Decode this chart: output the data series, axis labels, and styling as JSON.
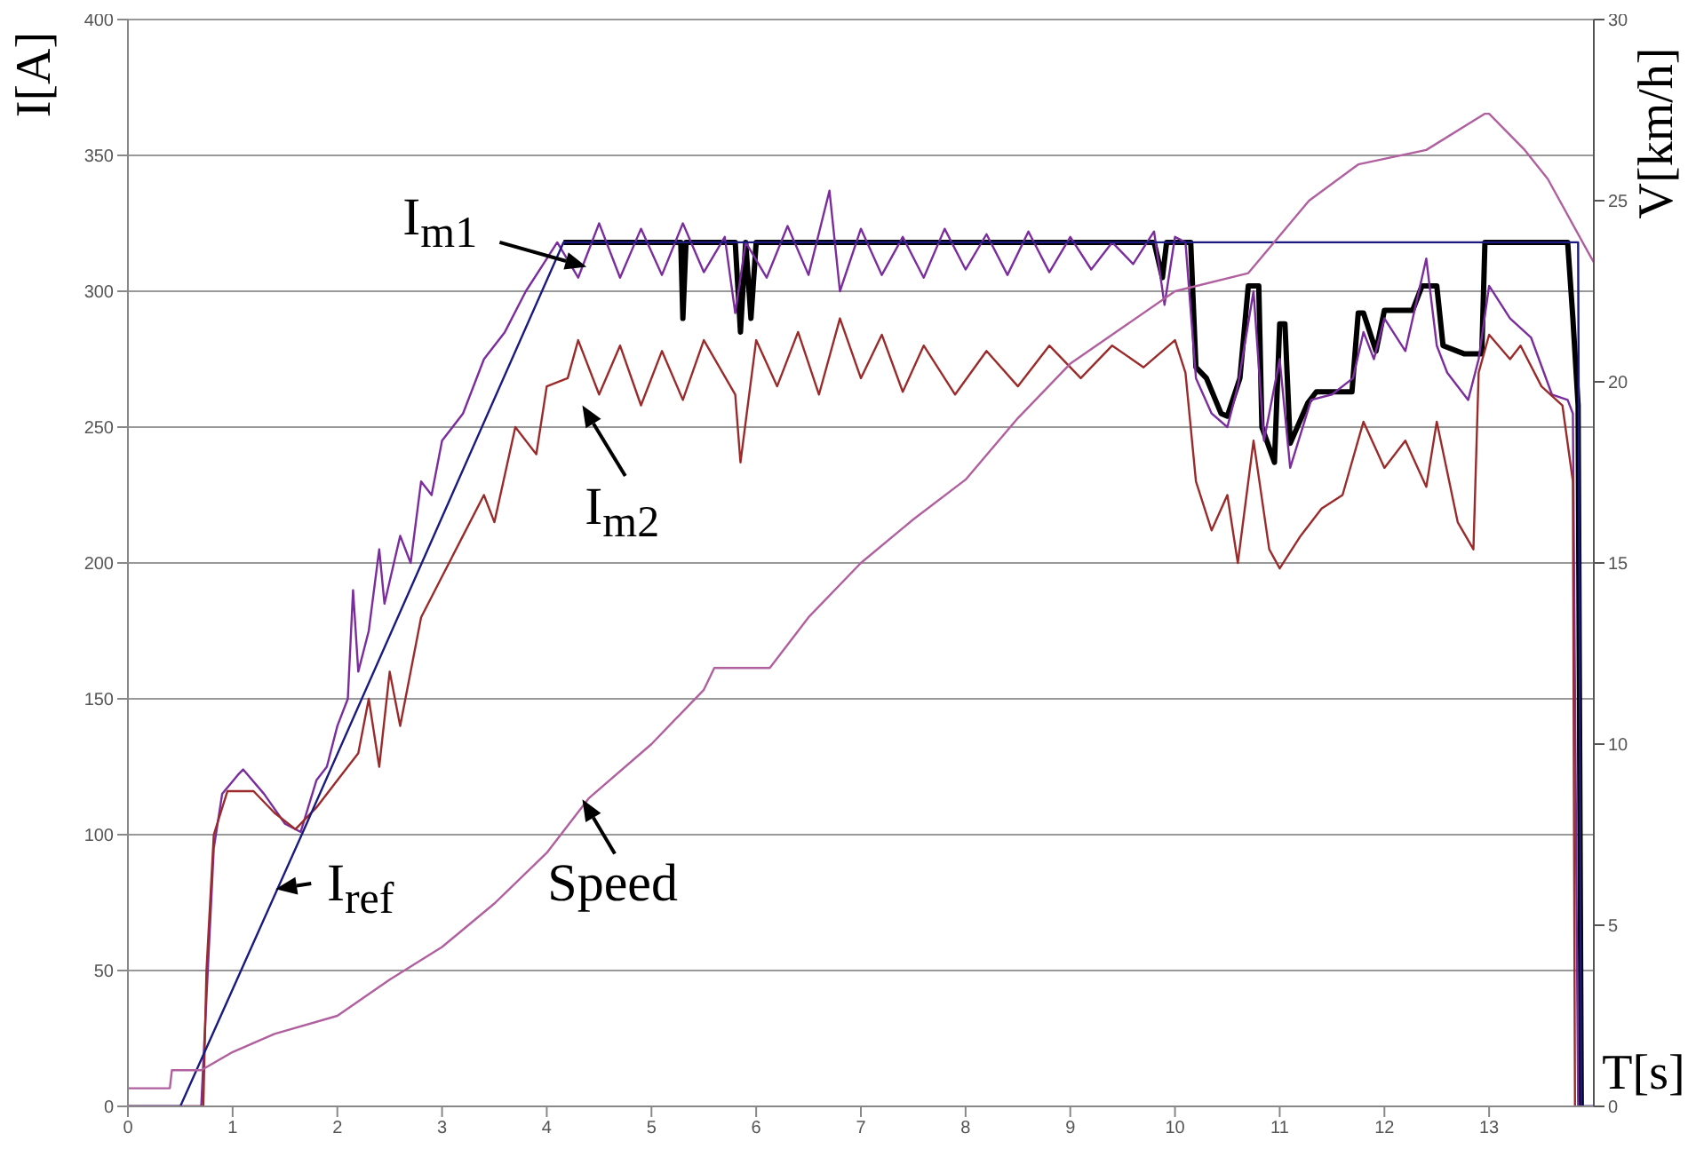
{
  "chart_data": {
    "type": "line",
    "xlabel": "T[s]",
    "ylabel": "I[A]",
    "y2label": "V[km/h]",
    "xlim": [
      0,
      14
    ],
    "xticks": [
      0,
      1,
      2,
      3,
      4,
      5,
      6,
      7,
      8,
      9,
      10,
      11,
      12,
      13
    ],
    "ylim": [
      0,
      400
    ],
    "yticks": [
      0,
      50,
      100,
      150,
      200,
      250,
      300,
      350,
      400
    ],
    "y2lim": [
      0,
      30
    ],
    "y2ticks": [
      0,
      5,
      10,
      15,
      20,
      25,
      30
    ],
    "grid": "y",
    "marker": "none",
    "series": [
      {
        "name": "I$_{m1}$",
        "color": "#7b2d9e",
        "x": [
          0,
          0.7,
          0.75,
          0.82,
          0.9,
          1.05,
          1.1,
          1.3,
          1.5,
          1.65,
          1.8,
          1.9,
          2.0,
          2.1,
          2.15,
          2.2,
          2.3,
          2.4,
          2.45,
          2.6,
          2.7,
          2.8,
          2.9,
          3.0,
          3.2,
          3.4,
          3.6,
          3.8,
          4.0,
          4.1,
          4.3,
          4.5,
          4.7,
          4.9,
          5.1,
          5.3,
          5.5,
          5.7,
          5.8,
          5.9,
          6.1,
          6.3,
          6.5,
          6.7,
          6.8,
          7.0,
          7.2,
          7.4,
          7.6,
          7.8,
          8.0,
          8.2,
          8.4,
          8.6,
          8.8,
          9.0,
          9.2,
          9.4,
          9.6,
          9.8,
          9.9,
          10.0,
          10.1,
          10.2,
          10.35,
          10.5,
          10.6,
          10.75,
          10.85,
          11.0,
          11.1,
          11.3,
          11.5,
          11.7,
          11.8,
          11.9,
          12.0,
          12.2,
          12.4,
          12.5,
          12.6,
          12.8,
          12.9,
          13.0,
          13.2,
          13.4,
          13.6,
          13.75,
          13.8,
          13.85,
          14
        ],
        "values": [
          0,
          0,
          40,
          95,
          115,
          122,
          124,
          115,
          104,
          101,
          120,
          125,
          140,
          150,
          190,
          160,
          175,
          205,
          185,
          210,
          200,
          230,
          225,
          245,
          255,
          275,
          285,
          300,
          312,
          318,
          305,
          325,
          305,
          323,
          306,
          325,
          307,
          320,
          292,
          318,
          305,
          324,
          306,
          337,
          300,
          323,
          306,
          320,
          305,
          323,
          308,
          321,
          306,
          322,
          307,
          320,
          308,
          318,
          310,
          322,
          295,
          320,
          318,
          268,
          255,
          250,
          265,
          300,
          245,
          275,
          235,
          260,
          262,
          268,
          285,
          275,
          290,
          278,
          312,
          280,
          270,
          260,
          275,
          302,
          290,
          283,
          262,
          260,
          255,
          0,
          0
        ]
      },
      {
        "name": "I$_{m2}$",
        "color": "#9b2b2b",
        "x": [
          0,
          0.72,
          0.75,
          0.82,
          0.95,
          1.2,
          1.4,
          1.6,
          1.8,
          2.0,
          2.2,
          2.3,
          2.4,
          2.5,
          2.6,
          2.8,
          3.0,
          3.2,
          3.4,
          3.5,
          3.7,
          3.9,
          4.0,
          4.2,
          4.3,
          4.5,
          4.7,
          4.9,
          5.1,
          5.3,
          5.5,
          5.8,
          5.85,
          6.0,
          6.2,
          6.4,
          6.6,
          6.8,
          7.0,
          7.2,
          7.4,
          7.6,
          7.9,
          8.2,
          8.5,
          8.8,
          9.1,
          9.4,
          9.7,
          10.0,
          10.1,
          10.2,
          10.35,
          10.5,
          10.6,
          10.75,
          10.9,
          11.0,
          11.2,
          11.4,
          11.6,
          11.8,
          12.0,
          12.2,
          12.4,
          12.5,
          12.7,
          12.85,
          12.9,
          13.0,
          13.2,
          13.3,
          13.5,
          13.7,
          13.8,
          13.82
        ],
        "values": [
          0,
          0,
          50,
          100,
          116,
          116,
          108,
          102,
          110,
          120,
          130,
          150,
          125,
          160,
          140,
          180,
          195,
          210,
          225,
          215,
          250,
          240,
          265,
          268,
          282,
          262,
          280,
          258,
          278,
          260,
          282,
          262,
          237,
          282,
          265,
          285,
          262,
          290,
          268,
          284,
          263,
          280,
          262,
          278,
          265,
          280,
          268,
          280,
          272,
          282,
          270,
          230,
          212,
          225,
          200,
          245,
          205,
          198,
          210,
          220,
          225,
          252,
          235,
          245,
          228,
          252,
          215,
          205,
          270,
          284,
          275,
          280,
          265,
          258,
          230,
          0
        ]
      },
      {
        "name": "I$_{ref}$",
        "color": "#1a1a80",
        "x": [
          0,
          0.5,
          1.66,
          4.16,
          13.85,
          13.88,
          14
        ],
        "values": [
          0,
          0,
          100,
          318,
          318,
          0,
          0
        ]
      },
      {
        "color": "#000000",
        "x": [
          4.16,
          5.28,
          5.3,
          5.33,
          5.8,
          5.85,
          5.9,
          5.95,
          6.0,
          9.8,
          9.88,
          9.92,
          10.15,
          10.2,
          10.3,
          10.44,
          10.5,
          10.62,
          10.7,
          10.8,
          10.83,
          10.95,
          11.0,
          11.05,
          11.1,
          11.27,
          11.35,
          11.69,
          11.75,
          11.8,
          11.92,
          12.0,
          12.27,
          12.36,
          12.5,
          12.56,
          12.76,
          12.93,
          12.96,
          13.75,
          13.8,
          13.85,
          13.88
        ],
        "values": [
          318,
          318,
          290,
          318,
          318,
          285,
          318,
          290,
          318,
          318,
          305,
          318,
          318,
          272,
          268,
          255,
          254,
          268,
          302,
          302,
          250,
          237,
          288,
          288,
          244,
          259,
          263,
          263,
          292,
          292,
          278,
          293,
          293,
          302,
          302,
          280,
          277,
          277,
          318,
          318,
          290,
          258,
          0
        ]
      },
      {
        "name": "Speed",
        "color": "#b0609e",
        "axis": "y2",
        "x": [
          0,
          0.4,
          0.42,
          0.7,
          1.0,
          1.4,
          2.0,
          2.5,
          3.0,
          3.5,
          4.0,
          4.4,
          5.0,
          5.5,
          5.6,
          6.13,
          6.5,
          7.0,
          7.5,
          8.0,
          8.5,
          9.0,
          9.5,
          10.0,
          10.7,
          11.28,
          11.75,
          12.4,
          12.96,
          13.0,
          13.34,
          13.56,
          13.96,
          14
        ],
        "values": [
          0.5,
          0.5,
          1.0,
          1.0,
          1.5,
          2.0,
          2.5,
          3.5,
          4.4,
          5.6,
          7.0,
          8.5,
          10.0,
          11.5,
          12.1,
          12.1,
          13.5,
          15.0,
          16.2,
          17.3,
          19.0,
          20.5,
          21.5,
          22.5,
          23.0,
          25.0,
          26.0,
          26.4,
          27.4,
          27.4,
          26.4,
          25.6,
          23.5,
          23.3
        ]
      }
    ]
  }
}
